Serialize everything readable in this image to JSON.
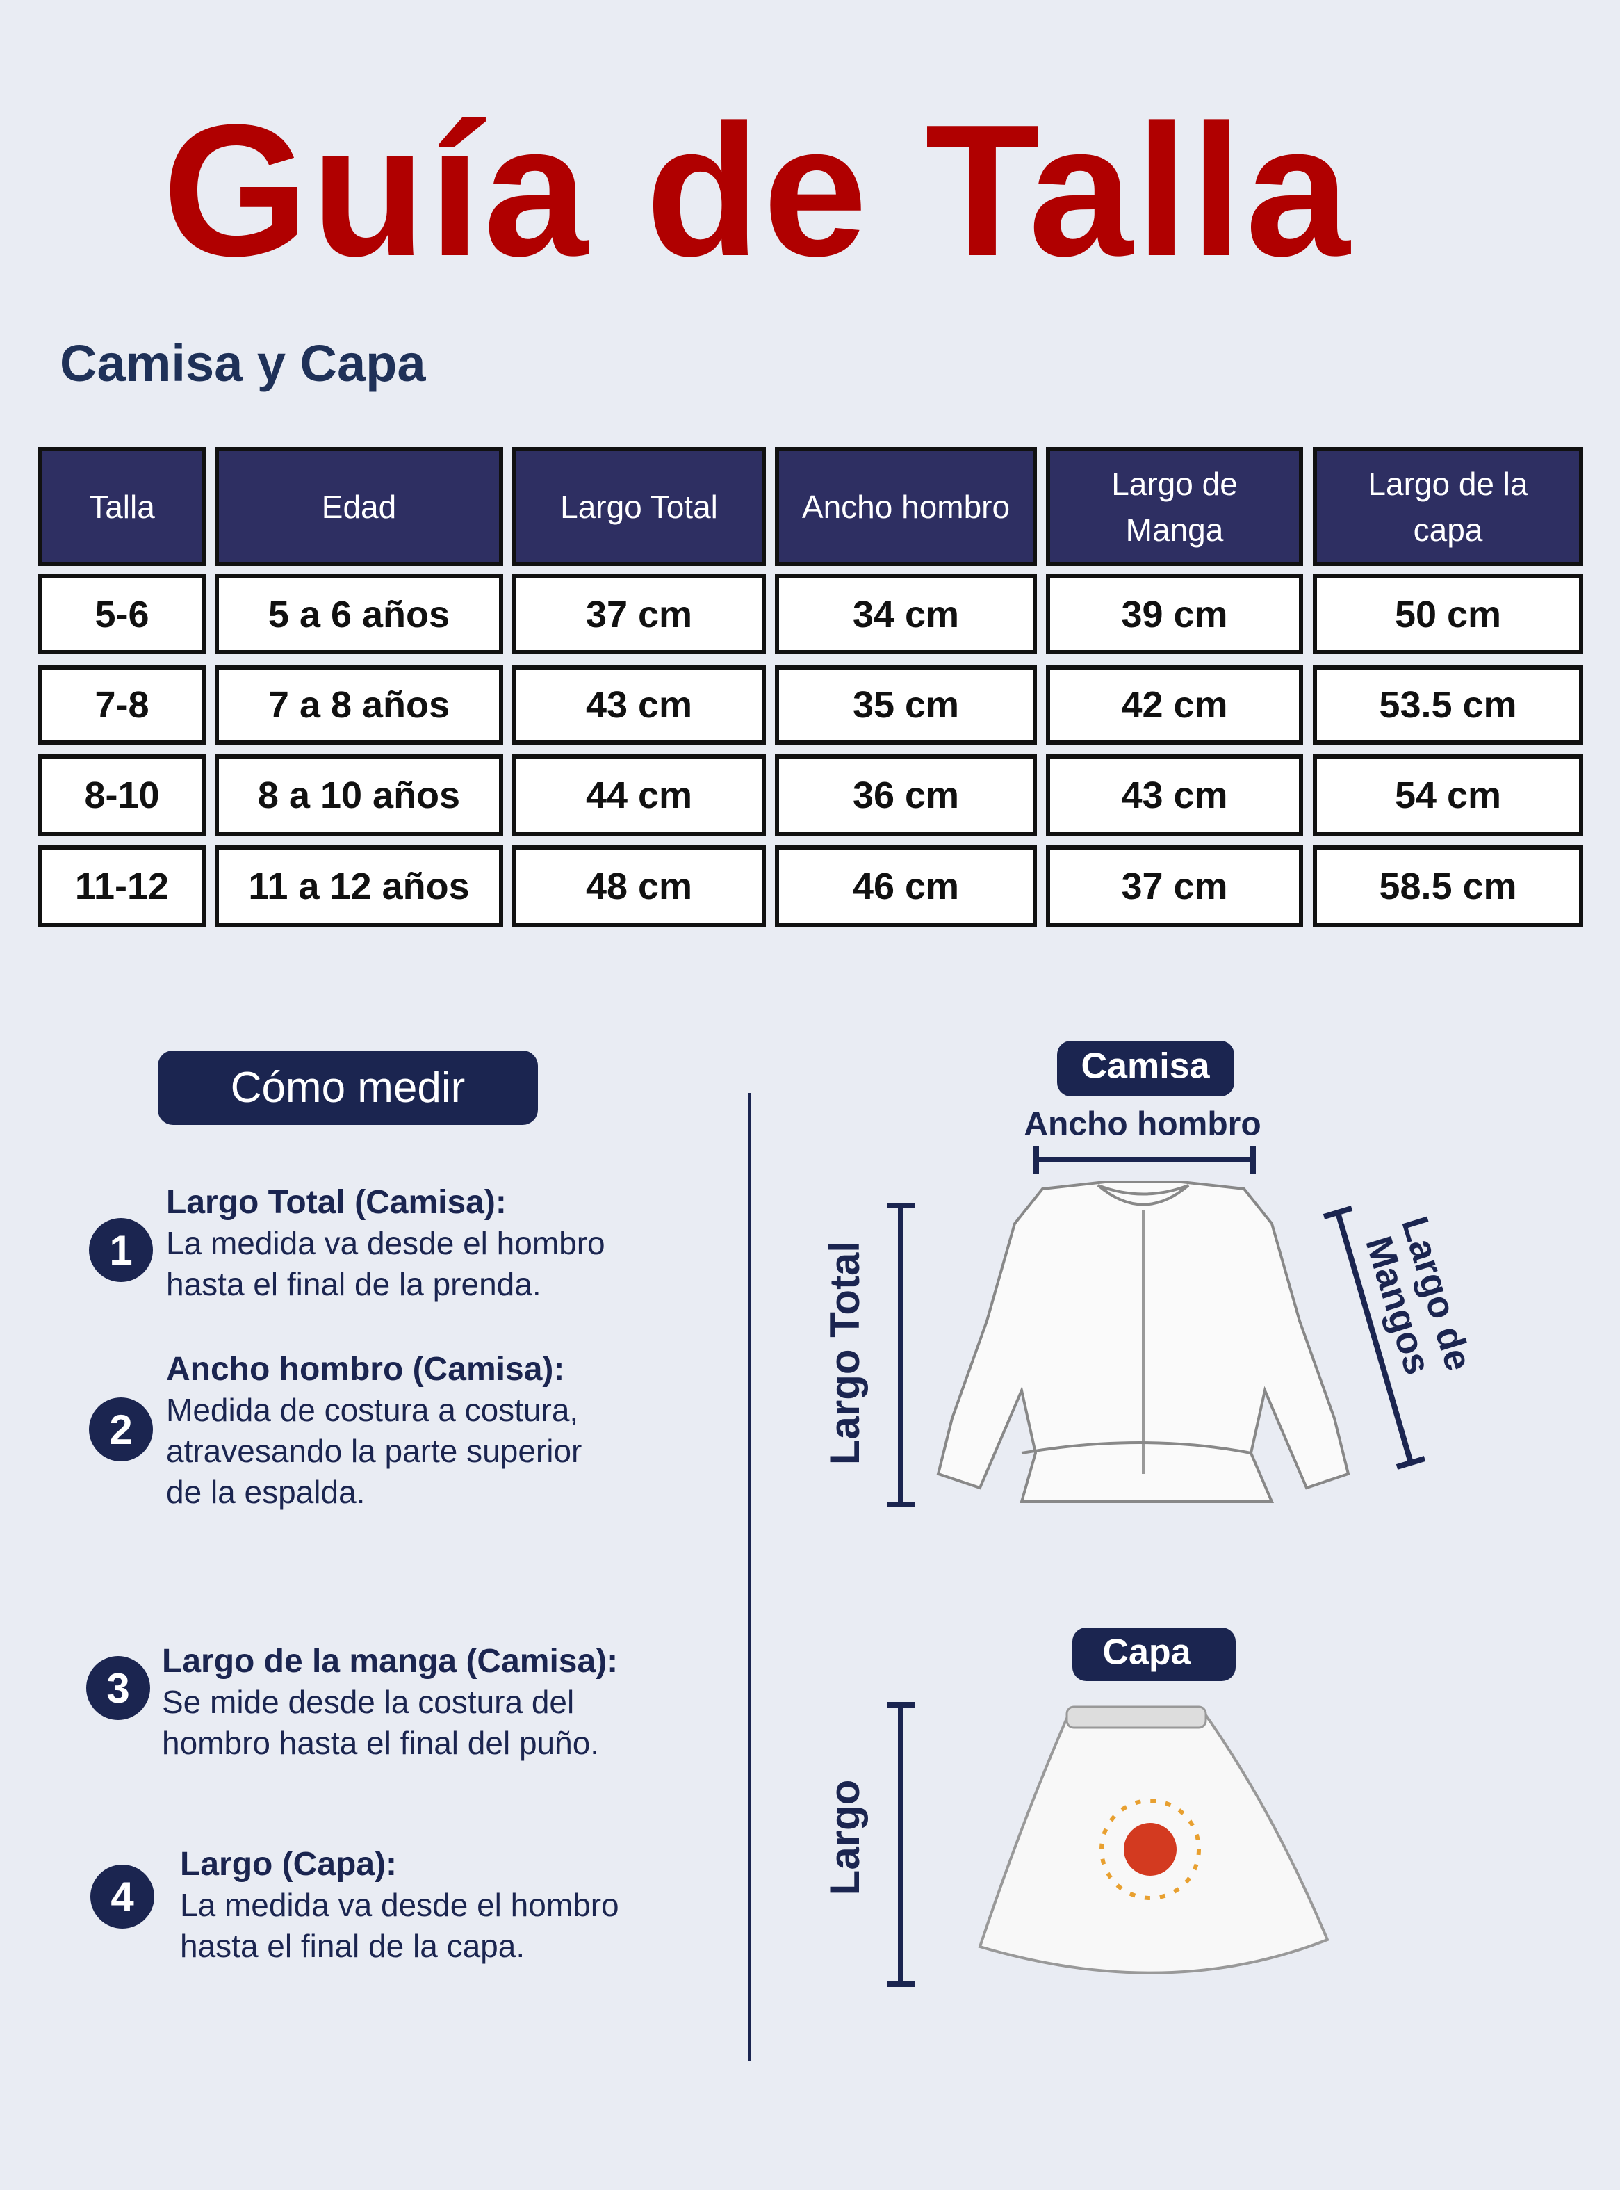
{
  "header": {
    "title": "Guía de Talla",
    "subtitle": "Camisa y Capa"
  },
  "table": {
    "columns": [
      "Talla",
      "Edad",
      "Largo Total",
      "Ancho hombro",
      "Largo de Manga",
      "Largo de la capa"
    ],
    "rows": [
      [
        "5-6",
        "5 a 6 años",
        "37 cm",
        "34 cm",
        "39 cm",
        "50 cm"
      ],
      [
        "7-8",
        "7 a 8 años",
        "43 cm",
        "35 cm",
        "42 cm",
        "53.5 cm"
      ],
      [
        "8-10",
        "8 a 10 años",
        "44 cm",
        "36 cm",
        "43 cm",
        "54 cm"
      ],
      [
        "11-12",
        "11 a 12 años",
        "48 cm",
        "46 cm",
        "37 cm",
        "58.5 cm"
      ]
    ]
  },
  "how_to": {
    "title": "Cómo medir",
    "steps": [
      {
        "number": "1",
        "heading": "Largo Total (Camisa):",
        "text": "La medida va desde el hombro hasta el final de la prenda."
      },
      {
        "number": "2",
        "heading": "Ancho hombro (Camisa):",
        "text": "Medida de costura a costura, atravesando la parte superior de la espalda."
      },
      {
        "number": "3",
        "heading": "Largo de la manga (Camisa):",
        "text": "Se mide desde la costura del hombro hasta el final del puño."
      },
      {
        "number": "4",
        "heading": "Largo (Capa):",
        "text": "La medida va desde el hombro hasta el final de la capa."
      }
    ]
  },
  "diagram": {
    "camisa": "Camisa",
    "ancho_hombro": "Ancho hombro",
    "largo_total": "Largo Total",
    "largo_mangos": "Largo de Mangos",
    "capa": "Capa",
    "largo": "Largo"
  }
}
